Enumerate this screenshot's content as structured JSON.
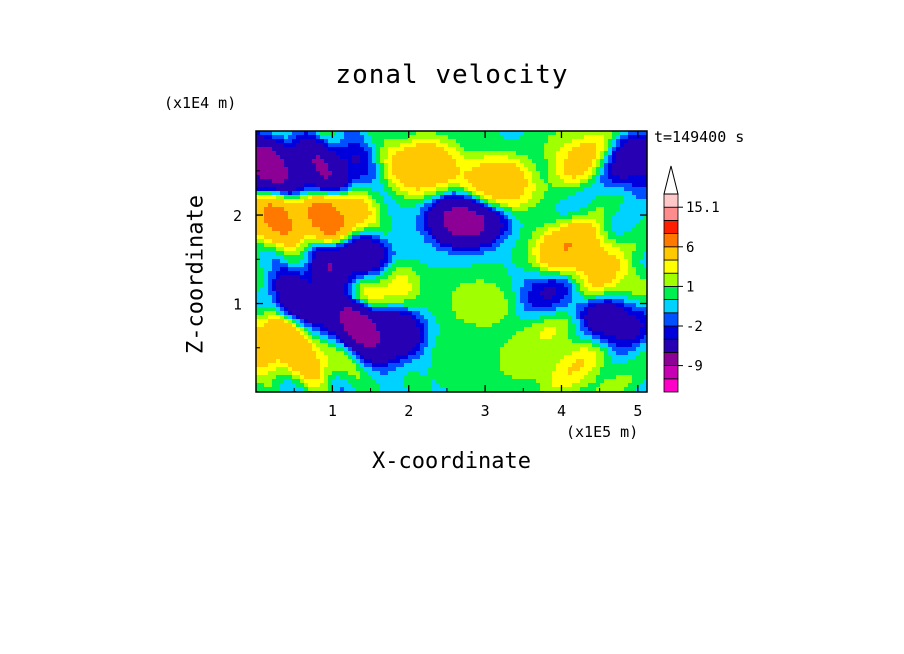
{
  "chart_data": {
    "type": "heatmap",
    "title": "zonal velocity",
    "xlabel": "X-coordinate",
    "ylabel": "Z-coordinate",
    "x_multiplier": "(x1E5 m)",
    "y_multiplier": "(x1E4 m)",
    "time_label": "t=149400 s",
    "xlim": [
      0,
      5.12
    ],
    "ylim": [
      0,
      2.95
    ],
    "x_ticks": [
      1,
      2,
      3,
      4,
      5
    ],
    "y_ticks": [
      1,
      2
    ],
    "grid": false,
    "colorbar": {
      "levels": [
        -15,
        -12,
        -9,
        -6,
        -3,
        -2,
        -1,
        0,
        1,
        2,
        3,
        6,
        9,
        12,
        15.1
      ],
      "labeled_levels": [
        "15.1",
        "6",
        "1",
        "-2",
        "-9"
      ],
      "colors": [
        "#ff00c8",
        "#c800b4",
        "#8c0096",
        "#2800b4",
        "#0000dc",
        "#0050ff",
        "#00d2ff",
        "#00f050",
        "#a0ff00",
        "#ffff00",
        "#ffc800",
        "#ff7800",
        "#ff1e00",
        "#ff8c8c",
        "#ffc8c8"
      ],
      "extend": "max"
    },
    "features": [
      {
        "x": 0.12,
        "z": 2.55,
        "value": -9
      },
      {
        "x": 0.55,
        "z": 2.45,
        "value": -6
      },
      {
        "x": 0.95,
        "z": 2.52,
        "value": -6
      },
      {
        "x": 0.3,
        "z": 2.0,
        "value": 8
      },
      {
        "x": 0.95,
        "z": 2.0,
        "value": 9
      },
      {
        "x": 2.2,
        "z": 2.55,
        "value": 6
      },
      {
        "x": 3.15,
        "z": 2.35,
        "value": 6
      },
      {
        "x": 4.35,
        "z": 2.65,
        "value": 5
      },
      {
        "x": 2.75,
        "z": 1.95,
        "value": -9
      },
      {
        "x": 4.15,
        "z": 1.6,
        "value": 7
      },
      {
        "x": 1.3,
        "z": 1.45,
        "value": -8
      },
      {
        "x": 0.7,
        "z": 1.1,
        "value": -6
      },
      {
        "x": 1.25,
        "z": 0.75,
        "value": -9
      },
      {
        "x": 1.7,
        "z": 0.65,
        "value": -7
      },
      {
        "x": 1.6,
        "z": 1.2,
        "value": 4
      },
      {
        "x": 2.95,
        "z": 1.0,
        "value": 2
      },
      {
        "x": 2.7,
        "z": 0.45,
        "value": 0.5
      },
      {
        "x": 3.55,
        "z": 0.4,
        "value": 2
      },
      {
        "x": 3.9,
        "z": 1.05,
        "value": -4
      },
      {
        "x": 4.0,
        "z": 0.75,
        "value": 3
      },
      {
        "x": 4.6,
        "z": 0.85,
        "value": -7
      },
      {
        "x": 4.6,
        "z": 1.2,
        "value": 4
      },
      {
        "x": 0.75,
        "z": 0.45,
        "value": 5
      },
      {
        "x": 0.2,
        "z": 0.55,
        "value": 6
      },
      {
        "x": 4.85,
        "z": 2.6,
        "value": -6
      },
      {
        "x": 4.2,
        "z": 0.25,
        "value": 3
      }
    ]
  }
}
